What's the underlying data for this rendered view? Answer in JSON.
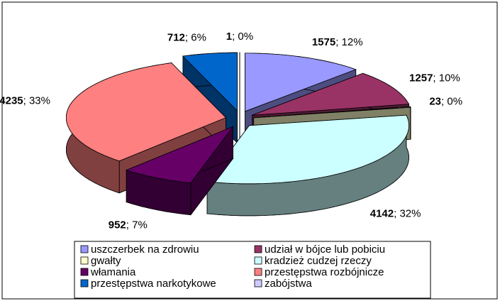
{
  "chart_data": {
    "type": "pie",
    "categories": [
      "uszczerbek na zdrowiu",
      "udział w bójce lub pobiciu",
      "gwałty",
      "kradzież cudzej rzeczy",
      "włamania",
      "przestępstwa rozbójnicze",
      "przestępstwa narkotykowe",
      "zabójstwa"
    ],
    "values": [
      1575,
      1257,
      23,
      4142,
      952,
      4235,
      712,
      1
    ],
    "value_labels": [
      "1575; 12%",
      "1257; 10%",
      "23; 0%",
      "4142; 32%",
      "952; 7%",
      "4235; 33%",
      "712; 6%",
      "1; 0%"
    ],
    "colors": [
      "#9999ff",
      "#993366",
      "#ffffcc",
      "#ccffff",
      "#660066",
      "#ff8080",
      "#0066cc",
      "#ccccff"
    ],
    "legend": "bottom"
  }
}
